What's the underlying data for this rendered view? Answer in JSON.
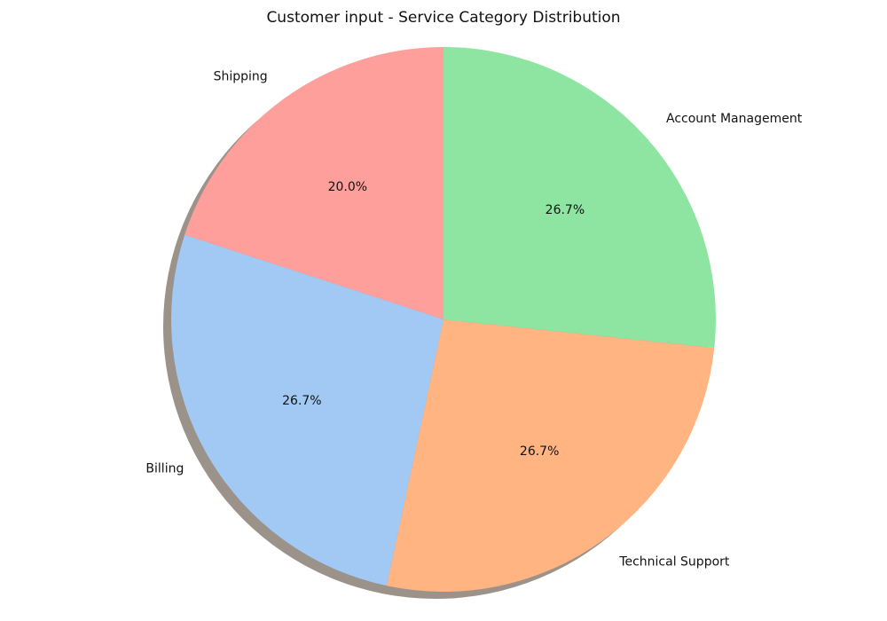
{
  "chart_data": {
    "type": "pie",
    "title": "Customer input - Service Category Distribution",
    "categories": [
      "Shipping",
      "Billing",
      "Technical Support",
      "Account Management"
    ],
    "values": [
      20.0,
      26.7,
      26.7,
      26.7
    ],
    "percent_labels": [
      "20.0%",
      "26.7%",
      "26.7%",
      "26.7%"
    ],
    "colors": [
      "#ff9f9b",
      "#a1c9f4",
      "#ffb482",
      "#8de5a1"
    ],
    "start_angle_deg": 90,
    "direction": "counterclockwise",
    "shadow": true,
    "legend": "none"
  }
}
